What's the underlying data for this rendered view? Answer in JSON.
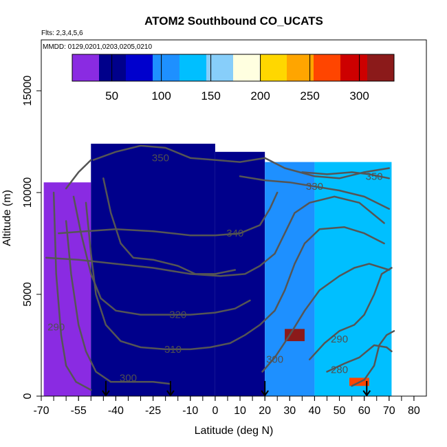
{
  "chart_data": {
    "type": "heatmap",
    "title": "ATOM2 Southbound CO_UCATS",
    "flights_note": "Flts: 2,3,4,5,6",
    "dates_note": "MMDD: 0129,0201,0203,0205,0210",
    "xlabel": "Latitude (deg N)",
    "ylabel": "Altitude (m)",
    "xlim": [
      -70,
      85
    ],
    "ylim": [
      0,
      17500
    ],
    "x_ticks": [
      -70,
      -55,
      -40,
      -25,
      -10,
      0,
      10,
      20,
      30,
      40,
      50,
      60,
      70,
      80
    ],
    "y_ticks": [
      0,
      5000,
      10000,
      15000
    ],
    "colorbar": {
      "ticks": [
        50,
        100,
        150,
        200,
        250,
        300
      ],
      "range": [
        10,
        335
      ],
      "colors": [
        "#8a2be2",
        "#00008b",
        "#0000cd",
        "#1e90ff",
        "#00bfff",
        "#87cefa",
        "#ffffe0",
        "#ffd700",
        "#ffa500",
        "#ff4500",
        "#cd0000",
        "#8b1a1a"
      ]
    },
    "field_regions": [
      {
        "x0": -69,
        "x1": -50,
        "y0": 0,
        "y1": 10500,
        "value": 35
      },
      {
        "x0": -50,
        "x1": 0,
        "y0": 0,
        "y1": 12400,
        "value": 40
      },
      {
        "x0": 0,
        "x1": 20,
        "y0": 0,
        "y1": 12000,
        "value": 60
      },
      {
        "x0": 20,
        "x1": 40,
        "y0": 0,
        "y1": 11500,
        "value": 110
      },
      {
        "x0": 40,
        "x1": 71,
        "y0": 0,
        "y1": 11500,
        "value": 125
      },
      {
        "x0": 28,
        "x1": 36,
        "y0": 2700,
        "y1": 3300,
        "value": 320
      },
      {
        "x0": 54,
        "x1": 62,
        "y0": 500,
        "y1": 900,
        "value": 275
      }
    ],
    "contours": [
      {
        "label": "350",
        "label_at": [
          -22,
          11700
        ],
        "points": [
          [
            -49,
            11600
          ],
          [
            -40,
            12000
          ],
          [
            -30,
            12300
          ],
          [
            -20,
            12200
          ],
          [
            -10,
            11700
          ],
          [
            0,
            11600
          ],
          [
            10,
            11500
          ],
          [
            20,
            11700
          ],
          [
            28,
            11200
          ],
          [
            40,
            10800
          ],
          [
            50,
            10700
          ],
          [
            60,
            11000
          ],
          [
            70,
            11200
          ]
        ]
      },
      {
        "label": "350",
        "label_at": [
          64,
          10800
        ],
        "points": [
          [
            35,
            11000
          ],
          [
            45,
            10900
          ],
          [
            55,
            11000
          ],
          [
            62,
            10900
          ],
          [
            70,
            10700
          ]
        ]
      },
      {
        "label": "330",
        "label_at": [
          40,
          10300
        ],
        "points": [
          [
            10,
            10800
          ],
          [
            20,
            10600
          ],
          [
            30,
            10500
          ],
          [
            40,
            10300
          ],
          [
            50,
            10100
          ],
          [
            60,
            9800
          ],
          [
            70,
            9200
          ]
        ]
      },
      {
        "label": "340",
        "label_at": [
          8,
          8000
        ],
        "points": [
          [
            -63,
            8000
          ],
          [
            -52,
            8100
          ],
          [
            -40,
            8200
          ],
          [
            -25,
            8100
          ],
          [
            -10,
            7900
          ],
          [
            0,
            7900
          ],
          [
            10,
            8000
          ],
          [
            18,
            8400
          ],
          [
            22,
            9200
          ],
          [
            25,
            10000
          ]
        ]
      },
      {
        "label": "",
        "label_at": [
          0,
          0
        ],
        "points": [
          [
            -68,
            6800
          ],
          [
            -55,
            6700
          ],
          [
            -40,
            6500
          ],
          [
            -25,
            6300
          ],
          [
            -10,
            6000
          ],
          [
            2,
            5900
          ],
          [
            12,
            6000
          ],
          [
            18,
            6400
          ],
          [
            24,
            7000
          ],
          [
            28,
            8000
          ],
          [
            32,
            9000
          ],
          [
            38,
            9500
          ],
          [
            48,
            9800
          ],
          [
            58,
            9500
          ],
          [
            68,
            8500
          ]
        ]
      },
      {
        "label": "320",
        "label_at": [
          -15,
          4000
        ],
        "points": [
          [
            -57,
            9800
          ],
          [
            -54,
            8000
          ],
          [
            -50,
            6000
          ],
          [
            -46,
            4800
          ],
          [
            -40,
            4200
          ],
          [
            -30,
            4000
          ],
          [
            -20,
            4000
          ],
          [
            -10,
            4000
          ],
          [
            0,
            4100
          ],
          [
            8,
            4300
          ],
          [
            14,
            4700
          ]
        ]
      },
      {
        "label": "310",
        "label_at": [
          -17,
          2300
        ],
        "points": [
          [
            -52,
            9500
          ],
          [
            -50,
            7000
          ],
          [
            -48,
            5000
          ],
          [
            -44,
            3500
          ],
          [
            -38,
            2700
          ],
          [
            -30,
            2400
          ],
          [
            -20,
            2300
          ],
          [
            -10,
            2300
          ],
          [
            -2,
            2400
          ],
          [
            6,
            2600
          ],
          [
            12,
            3000
          ],
          [
            18,
            3500
          ],
          [
            24,
            4200
          ],
          [
            28,
            5200
          ],
          [
            32,
            6500
          ],
          [
            36,
            7500
          ],
          [
            42,
            8200
          ],
          [
            52,
            8300
          ],
          [
            60,
            8000
          ],
          [
            68,
            7500
          ]
        ]
      },
      {
        "label": "300",
        "label_at": [
          -35,
          900
        ],
        "points": [
          [
            -60,
            8600
          ],
          [
            -58,
            6000
          ],
          [
            -55,
            3500
          ],
          [
            -52,
            2200
          ],
          [
            -48,
            1200
          ],
          [
            -42,
            700
          ],
          [
            -35,
            700
          ],
          [
            -25,
            700
          ],
          [
            -18,
            600
          ]
        ]
      },
      {
        "label": "300",
        "label_at": [
          24,
          1800
        ],
        "points": [
          [
            19,
            1200
          ],
          [
            24,
            1900
          ],
          [
            30,
            3000
          ],
          [
            36,
            4200
          ],
          [
            42,
            5200
          ],
          [
            50,
            5900
          ],
          [
            56,
            6300
          ],
          [
            62,
            6500
          ],
          [
            70,
            6200
          ]
        ]
      },
      {
        "label": "290",
        "label_at": [
          -64,
          3400
        ],
        "points": [
          [
            -65,
            10000
          ],
          [
            -64,
            6000
          ],
          [
            -62,
            3000
          ],
          [
            -60,
            1500
          ],
          [
            -56,
            700
          ],
          [
            -50,
            300
          ]
        ]
      },
      {
        "label": "290",
        "label_at": [
          50,
          2800
        ],
        "points": [
          [
            38,
            1800
          ],
          [
            44,
            2600
          ],
          [
            50,
            3200
          ],
          [
            56,
            3500
          ],
          [
            60,
            4000
          ],
          [
            64,
            5000
          ],
          [
            67,
            6000
          ],
          [
            71,
            6300
          ]
        ]
      },
      {
        "label": "280",
        "label_at": [
          50,
          1300
        ],
        "points": [
          [
            45,
            1200
          ],
          [
            52,
            1600
          ],
          [
            58,
            1900
          ],
          [
            64,
            2500
          ],
          [
            69,
            2400
          ],
          [
            71,
            2200
          ]
        ]
      },
      {
        "label": "",
        "label_at": [
          0,
          0
        ],
        "points": [
          [
            55,
            500
          ],
          [
            60,
            800
          ],
          [
            64,
            1500
          ],
          [
            66,
            2500
          ],
          [
            69,
            3000
          ],
          [
            72,
            3200
          ]
        ]
      },
      {
        "label": "",
        "label_at": [
          0,
          0
        ],
        "points": [
          [
            -60,
            10200
          ],
          [
            -55,
            11000
          ],
          [
            -50,
            11600
          ]
        ]
      },
      {
        "label": "",
        "label_at": [
          0,
          0
        ],
        "points": [
          [
            -45,
            10700
          ],
          [
            -42,
            9000
          ],
          [
            -38,
            7500
          ],
          [
            -33,
            6800
          ],
          [
            -25,
            6700
          ],
          [
            -15,
            6400
          ],
          [
            -8,
            6000
          ],
          [
            0,
            6000
          ],
          [
            8,
            6200
          ]
        ]
      }
    ],
    "profile_markers": [
      -44,
      -18,
      20,
      61
    ]
  }
}
